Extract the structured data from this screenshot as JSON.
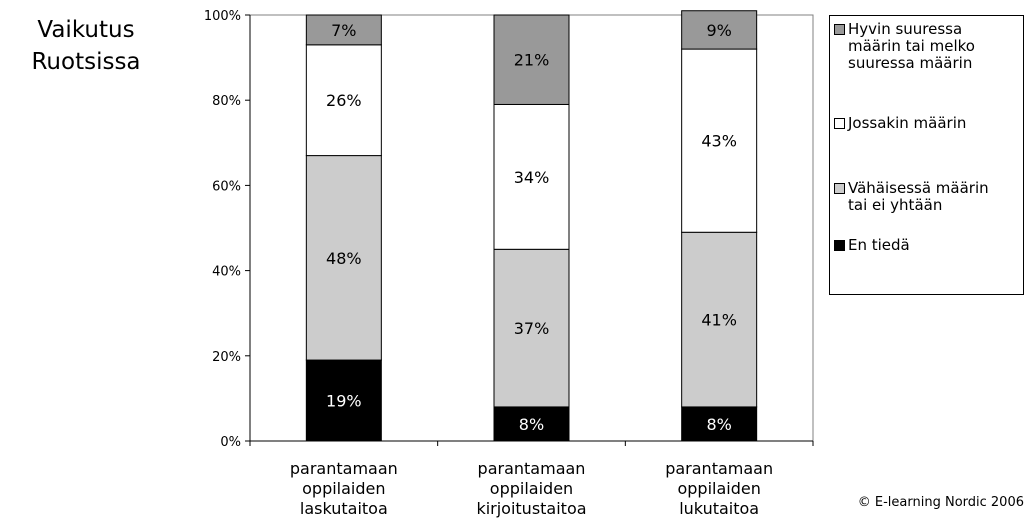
{
  "side_title": [
    "Vaikutus",
    "Ruotsissa"
  ],
  "copyright": "© E-learning Nordic 2006",
  "chart_data": {
    "type": "bar",
    "stacked": true,
    "percent": true,
    "categories": [
      [
        "parantamaan",
        "oppilaiden",
        "laskutaitoa"
      ],
      [
        "parantamaan",
        "oppilaiden",
        "kirjoitustaitoa"
      ],
      [
        "parantamaan",
        "oppilaiden",
        "lukutaitoa"
      ]
    ],
    "ylim": [
      0,
      100
    ],
    "yticks": [
      0,
      20,
      40,
      60,
      80,
      100
    ],
    "ytick_labels": [
      "0%",
      "20%",
      "40%",
      "60%",
      "80%",
      "100%"
    ],
    "grid": false,
    "legend_position": "right",
    "series": [
      {
        "name": "En tiedä",
        "color": "#000000",
        "label_color": "#ffffff",
        "values": [
          19,
          8,
          8
        ]
      },
      {
        "name": "Vähäisessä määrin tai ei yhtään",
        "color": "#cccccc",
        "label_color": "#000000",
        "values": [
          48,
          37,
          41
        ]
      },
      {
        "name": "Jossakin määrin",
        "color": "#ffffff",
        "label_color": "#000000",
        "values": [
          26,
          34,
          43
        ]
      },
      {
        "name": "Hyvin suuressa määrin tai melko suuressa määrin",
        "color": "#999999",
        "label_color": "#000000",
        "values": [
          7,
          21,
          9
        ]
      }
    ]
  },
  "legend": {
    "items": [
      {
        "label": "Hyvin suuressa\nmäärin tai melko\nsuuressa määrin",
        "color": "#999999"
      },
      {
        "label": "Jossakin määrin",
        "color": "#ffffff"
      },
      {
        "label": "Vähäisessä määrin\ntai ei yhtään",
        "color": "#cccccc"
      },
      {
        "label": "En tiedä",
        "color": "#000000"
      }
    ]
  }
}
